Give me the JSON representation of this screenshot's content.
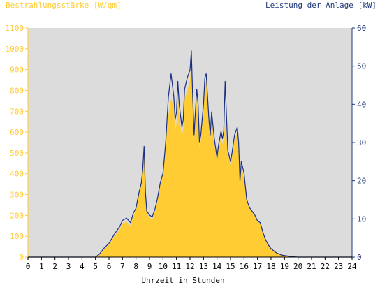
{
  "colors": {
    "plot_bg": "#dcdcdc",
    "area_fill": "#ffcc33",
    "line": "#1a2f80",
    "left_axis_text": "#ffcc33",
    "right_axis_text": "#223a7a",
    "x_axis_text": "#000000"
  },
  "chart_data": {
    "type": "area",
    "ylabel_left": "Bestrahlungsstärke [W/qm]",
    "ylabel_right": "Leistung der Anlage [kW]",
    "xlabel": "Uhrzeit in Stunden",
    "xlim": [
      0,
      24
    ],
    "ylim_left": [
      0,
      1100
    ],
    "ylim_right": [
      0,
      60
    ],
    "x_ticks": [
      "0",
      "1",
      "2",
      "3",
      "4",
      "5",
      "6",
      "7",
      "8",
      "9",
      "10",
      "11",
      "12",
      "13",
      "14",
      "15",
      "16",
      "17",
      "18",
      "19",
      "20",
      "21",
      "22",
      "23",
      "24"
    ],
    "y_ticks_left": [
      "0",
      "100",
      "200",
      "300",
      "400",
      "500",
      "600",
      "700",
      "800",
      "900",
      "1000",
      "1100"
    ],
    "y_ticks_right": [
      "0",
      "10",
      "20",
      "30",
      "40",
      "50",
      "60"
    ],
    "grid": false,
    "series": [
      {
        "name": "Bestrahlungsstärke [W/qm]",
        "axis": "left",
        "type": "area",
        "x": [
          0,
          5,
          5.3,
          5.6,
          6,
          6.4,
          6.8,
          7.0,
          7.3,
          7.6,
          7.8,
          8.0,
          8.2,
          8.4,
          8.5,
          8.6,
          8.7,
          8.8,
          9.0,
          9.2,
          9.4,
          9.6,
          9.8,
          10.0,
          10.2,
          10.4,
          10.6,
          10.8,
          10.9,
          11.0,
          11.1,
          11.2,
          11.4,
          11.5,
          11.6,
          11.8,
          12.0,
          12.1,
          12.2,
          12.3,
          12.4,
          12.5,
          12.6,
          12.7,
          12.8,
          13.0,
          13.1,
          13.2,
          13.4,
          13.5,
          13.6,
          13.8,
          14.0,
          14.1,
          14.3,
          14.4,
          14.5,
          14.6,
          14.8,
          15.0,
          15.1,
          15.3,
          15.5,
          15.6,
          15.7,
          15.8,
          16.0,
          16.2,
          16.4,
          16.6,
          16.8,
          17.0,
          17.2,
          17.4,
          17.6,
          17.8,
          18.0,
          18.4,
          18.8,
          19.2,
          19.6,
          20.0,
          24
        ],
        "values": [
          0,
          0,
          10,
          35,
          60,
          100,
          135,
          160,
          170,
          150,
          200,
          230,
          300,
          350,
          420,
          480,
          300,
          210,
          190,
          180,
          220,
          270,
          350,
          400,
          550,
          680,
          760,
          720,
          600,
          640,
          780,
          680,
          580,
          620,
          760,
          800,
          850,
          940,
          720,
          560,
          660,
          760,
          690,
          520,
          560,
          700,
          820,
          850,
          620,
          560,
          660,
          540,
          460,
          520,
          580,
          540,
          580,
          640,
          500,
          440,
          480,
          560,
          600,
          520,
          360,
          440,
          380,
          260,
          240,
          220,
          200,
          170,
          160,
          120,
          80,
          60,
          40,
          20,
          10,
          5,
          2,
          0,
          0
        ]
      },
      {
        "name": "Leistung der Anlage [kW]",
        "axis": "right",
        "type": "line",
        "x": [
          0,
          5,
          5.3,
          5.6,
          6,
          6.4,
          6.8,
          7.0,
          7.3,
          7.6,
          7.8,
          8.0,
          8.2,
          8.4,
          8.5,
          8.6,
          8.7,
          8.8,
          9.0,
          9.2,
          9.4,
          9.6,
          9.8,
          10.0,
          10.2,
          10.4,
          10.6,
          10.8,
          10.9,
          11.0,
          11.1,
          11.2,
          11.4,
          11.5,
          11.6,
          11.8,
          12.0,
          12.1,
          12.2,
          12.3,
          12.4,
          12.5,
          12.6,
          12.7,
          12.8,
          13.0,
          13.1,
          13.2,
          13.4,
          13.5,
          13.6,
          13.8,
          14.0,
          14.1,
          14.3,
          14.4,
          14.5,
          14.6,
          14.8,
          15.0,
          15.1,
          15.3,
          15.5,
          15.6,
          15.7,
          15.8,
          16.0,
          16.2,
          16.4,
          16.6,
          16.8,
          17.0,
          17.2,
          17.4,
          17.6,
          17.8,
          18.0,
          18.4,
          18.8,
          19.2,
          19.6,
          20.0,
          24
        ],
        "values": [
          0,
          0,
          0.8,
          2.2,
          3.6,
          6,
          8,
          9.6,
          10.2,
          9,
          11.5,
          12.8,
          16.5,
          19.5,
          23,
          29,
          17,
          12,
          11,
          10.5,
          12.5,
          15.5,
          19.5,
          22,
          30,
          42,
          48,
          42,
          36,
          38,
          46,
          40,
          34,
          36,
          44,
          47,
          49,
          54,
          42,
          32,
          38,
          44,
          40,
          30,
          32,
          40,
          47,
          48,
          36,
          32,
          38,
          31,
          26,
          29,
          33,
          31,
          33,
          46,
          28,
          25,
          27,
          32,
          34,
          30,
          20,
          25,
          22,
          15,
          13,
          12,
          11,
          9.5,
          9,
          6.5,
          4.5,
          3.2,
          2.2,
          1.1,
          0.5,
          0.3,
          0.1,
          0,
          0
        ]
      }
    ]
  }
}
